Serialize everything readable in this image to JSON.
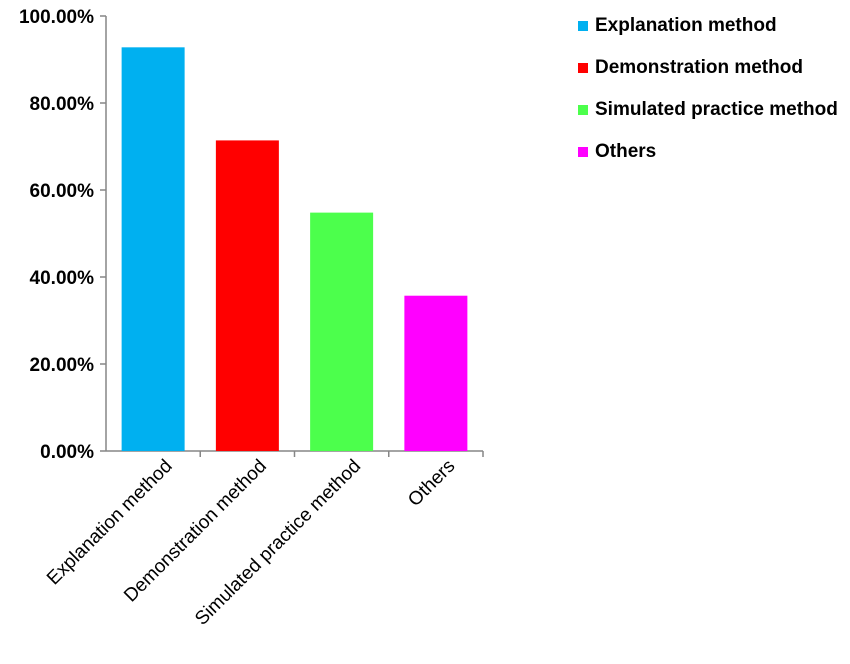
{
  "chart_data": {
    "type": "bar",
    "categories": [
      "Explanation method",
      "Demonstration method",
      "Simulated practice method",
      "Others"
    ],
    "values": [
      92.8,
      71.4,
      54.8,
      35.7
    ],
    "colors": [
      "#00B0F0",
      "#FF0000",
      "#4CFF4C",
      "#FF00FF"
    ],
    "ylim": [
      0,
      100
    ],
    "yticks": [
      "0.00%",
      "20.00%",
      "40.00%",
      "60.00%",
      "80.00%",
      "100.00%"
    ],
    "grid": false,
    "legend_position": "top-right",
    "legend": [
      {
        "label": "Explanation method",
        "color": "#00B0F0"
      },
      {
        "label": "Demonstration method",
        "color": "#FF0000"
      },
      {
        "label": "Simulated practice method",
        "color": "#4CFF4C"
      },
      {
        "label": "Others",
        "color": "#FF00FF"
      }
    ]
  }
}
